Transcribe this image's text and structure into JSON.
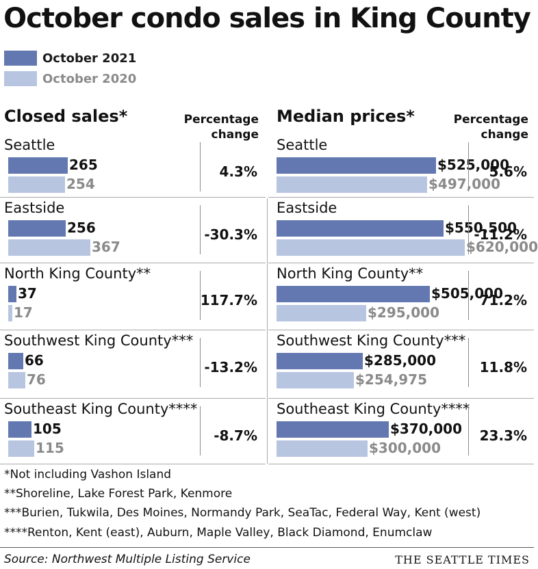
{
  "title": "October condo sales in King County",
  "legend": [
    {
      "label": "October 2021",
      "color": "#6378b0",
      "text_color": "#1a1a1a"
    },
    {
      "label": "October 2020",
      "color": "#b8c5e0",
      "text_color": "#8a8a8a"
    }
  ],
  "closed_sales": {
    "heading": "Closed sales*",
    "pct_heading_line1": "Percentage",
    "pct_heading_line2": "change"
  },
  "median_prices": {
    "heading": "Median prices*",
    "pct_heading_line1": "Percentage",
    "pct_heading_line2": "change"
  },
  "chart_data": [
    {
      "type": "bar",
      "orientation": "horizontal",
      "title": "Closed sales*",
      "categories": [
        "Seattle",
        "Eastside",
        "North King County**",
        "Southwest King County***",
        "Southeast King County****"
      ],
      "series": [
        {
          "name": "October 2021",
          "values": [
            265,
            256,
            37,
            66,
            105
          ],
          "labels": [
            "265",
            "256",
            "37",
            "66",
            "105"
          ]
        },
        {
          "name": "October 2020",
          "values": [
            254,
            367,
            17,
            76,
            115
          ],
          "labels": [
            "254",
            "367",
            "17",
            "76",
            "115"
          ]
        }
      ],
      "percentage_change": [
        "4.3%",
        "-30.3%",
        "117.7%",
        "-13.2%",
        "-8.7%"
      ],
      "xlim": [
        0,
        367
      ]
    },
    {
      "type": "bar",
      "orientation": "horizontal",
      "title": "Median prices*",
      "categories": [
        "Seattle",
        "Eastside",
        "North King County**",
        "Southwest King County***",
        "Southeast King County****"
      ],
      "series": [
        {
          "name": "October 2021",
          "values": [
            525000,
            550500,
            505000,
            285000,
            370000
          ],
          "labels": [
            "$525,000",
            "$550,500",
            "$505,000",
            "$285,000",
            "$370,000"
          ]
        },
        {
          "name": "October 2020",
          "values": [
            497000,
            620000,
            295000,
            254975,
            300000
          ],
          "labels": [
            "$497,000",
            "$620,000",
            "$295,000",
            "$254,975",
            "$300,000"
          ]
        }
      ],
      "percentage_change": [
        "5.6%",
        "-11.2%",
        "71.2%",
        "11.8%",
        "23.3%"
      ],
      "xlim": [
        0,
        620000
      ]
    }
  ],
  "notes": [
    "*Not including Vashon Island",
    "**Shoreline, Lake Forest Park, Kenmore",
    "***Burien, Tukwila, Des Moines, Normandy Park, SeaTac, Federal Way, Kent (west)",
    "****Renton, Kent (east), Auburn, Maple Valley, Black Diamond, Enumclaw"
  ],
  "source": "Source: Northwest Multiple Listing Service",
  "credit": "THE SEATTLE TIMES"
}
